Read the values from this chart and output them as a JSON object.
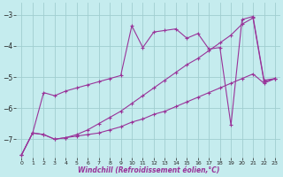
{
  "xlabel": "Windchill (Refroidissement éolien,°C)",
  "bg_color": "#c5ecee",
  "grid_color": "#a0cdd0",
  "line_color": "#993399",
  "xlim": [
    -0.5,
    23.5
  ],
  "ylim": [
    -7.6,
    -2.6
  ],
  "yticks": [
    -7,
    -6,
    -5,
    -4,
    -3
  ],
  "xticks": [
    0,
    1,
    2,
    3,
    4,
    5,
    6,
    7,
    8,
    9,
    10,
    11,
    12,
    13,
    14,
    15,
    16,
    17,
    18,
    19,
    20,
    21,
    22,
    23
  ],
  "line1_x": [
    0,
    1,
    2,
    3,
    4,
    5,
    6,
    7,
    8,
    9,
    10,
    11,
    12,
    13,
    14,
    15,
    16,
    17,
    18,
    19,
    20,
    21,
    22,
    23
  ],
  "line1_y": [
    -7.5,
    -6.8,
    -6.85,
    -7.0,
    -6.95,
    -6.9,
    -6.85,
    -6.8,
    -6.7,
    -6.6,
    -6.45,
    -6.35,
    -6.2,
    -6.1,
    -5.95,
    -5.8,
    -5.65,
    -5.5,
    -5.35,
    -5.2,
    -5.05,
    -4.9,
    -5.2,
    -5.05
  ],
  "line2_x": [
    0,
    1,
    2,
    3,
    4,
    5,
    6,
    7,
    8,
    9,
    10,
    11,
    12,
    13,
    14,
    15,
    16,
    17,
    18,
    19,
    20,
    21,
    22,
    23
  ],
  "line2_y": [
    -7.5,
    -6.8,
    -6.85,
    -7.0,
    -6.95,
    -6.85,
    -6.7,
    -6.5,
    -6.3,
    -6.1,
    -5.85,
    -5.6,
    -5.35,
    -5.1,
    -4.85,
    -4.6,
    -4.4,
    -4.15,
    -3.9,
    -3.65,
    -3.3,
    -3.1,
    -5.15,
    -5.05
  ],
  "line3_x": [
    0,
    1,
    2,
    3,
    4,
    5,
    6,
    7,
    8,
    9,
    10,
    11,
    12,
    13,
    14,
    15,
    16,
    17,
    18,
    19,
    20,
    21,
    22,
    23
  ],
  "line3_y": [
    -7.5,
    -6.8,
    -5.5,
    -5.6,
    -5.45,
    -5.35,
    -5.25,
    -5.15,
    -5.05,
    -4.95,
    -3.35,
    -4.05,
    -3.55,
    -3.5,
    -3.45,
    -3.75,
    -3.6,
    -4.1,
    -4.05,
    -6.55,
    -3.15,
    -3.05,
    -5.1,
    -5.05
  ]
}
